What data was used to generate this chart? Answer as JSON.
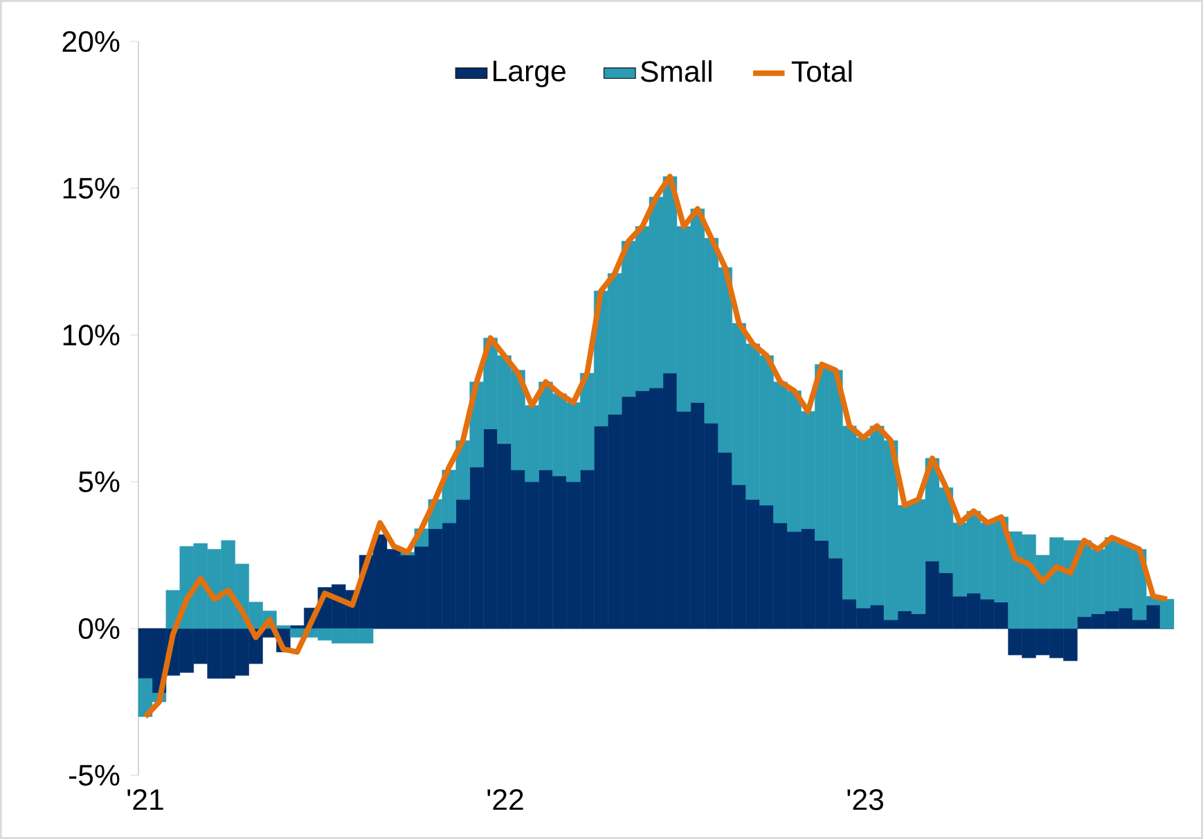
{
  "chart_data": {
    "type": "bar",
    "stacked": true,
    "legend": "top",
    "x": [
      "2021-01-01",
      "2021-01-15",
      "2021-01-29",
      "2021-02-12",
      "2021-02-26",
      "2021-03-12",
      "2021-03-26",
      "2021-04-09",
      "2021-04-23",
      "2021-05-07",
      "2021-05-21",
      "2021-06-04",
      "2021-06-18",
      "2021-07-02",
      "2021-07-16",
      "2021-07-30",
      "2021-08-13",
      "2021-08-27",
      "2021-09-10",
      "2021-09-24",
      "2021-10-08",
      "2021-10-22",
      "2021-11-05",
      "2021-11-19",
      "2021-12-03",
      "2021-12-17",
      "2021-12-31",
      "2022-01-14",
      "2022-01-28",
      "2022-02-11",
      "2022-02-25",
      "2022-03-11",
      "2022-03-25",
      "2022-04-08",
      "2022-04-22",
      "2022-05-06",
      "2022-05-20",
      "2022-06-03",
      "2022-06-17",
      "2022-07-01",
      "2022-07-15",
      "2022-07-29",
      "2022-08-12",
      "2022-08-26",
      "2022-09-09",
      "2022-09-23",
      "2022-10-07",
      "2022-10-21",
      "2022-11-04",
      "2022-11-18",
      "2022-12-02",
      "2022-12-16",
      "2022-12-30",
      "2023-01-13",
      "2023-01-27",
      "2023-02-10",
      "2023-02-24",
      "2023-03-10",
      "2023-03-24",
      "2023-04-07",
      "2023-04-21",
      "2023-05-05",
      "2023-05-19",
      "2023-06-02",
      "2023-06-16",
      "2023-06-30",
      "2023-07-14",
      "2023-07-28",
      "2023-08-11",
      "2023-08-25",
      "2023-09-08",
      "2023-09-22",
      "2023-10-06",
      "2023-10-20",
      "2023-11-03"
    ],
    "series": [
      {
        "name": "Large",
        "color": "#002f6c",
        "values": [
          -1.7,
          -2.2,
          -1.6,
          -1.5,
          -1.2,
          -1.7,
          -1.7,
          -1.6,
          -1.2,
          -0.3,
          -0.8,
          0.1,
          0.7,
          1.4,
          1.5,
          1.3,
          2.5,
          3.2,
          2.7,
          2.5,
          2.8,
          3.4,
          3.6,
          4.4,
          5.5,
          6.8,
          6.3,
          5.4,
          5.0,
          5.4,
          5.2,
          5.0,
          5.4,
          6.9,
          7.3,
          7.9,
          8.1,
          8.2,
          8.7,
          7.4,
          7.7,
          7.0,
          6.0,
          4.9,
          4.4,
          4.2,
          3.6,
          3.3,
          3.4,
          3.0,
          2.4,
          1.0,
          0.7,
          0.8,
          0.3,
          0.6,
          0.5,
          2.3,
          1.9,
          1.1,
          1.2,
          1.0,
          0.9,
          -0.9,
          -1.0,
          -0.9,
          -1.0,
          -1.1,
          0.4,
          0.5,
          0.6,
          0.7,
          0.3,
          0.8,
          0.0
        ]
      },
      {
        "name": "Small",
        "color": "#2a9bb3",
        "values": [
          -1.3,
          -0.3,
          1.3,
          2.8,
          2.9,
          2.7,
          3.0,
          2.2,
          0.9,
          0.6,
          0.1,
          -0.3,
          -0.3,
          -0.4,
          -0.5,
          -0.5,
          -0.5,
          null,
          null,
          0.1,
          0.6,
          1.0,
          1.8,
          2.0,
          2.9,
          3.1,
          3.0,
          3.4,
          2.6,
          3.0,
          2.8,
          2.7,
          3.3,
          4.6,
          4.8,
          5.3,
          5.6,
          6.5,
          6.7,
          6.3,
          6.6,
          6.3,
          6.3,
          5.5,
          5.3,
          5.1,
          4.8,
          4.8,
          4.0,
          6.0,
          6.4,
          5.9,
          5.8,
          6.1,
          6.1,
          3.6,
          3.9,
          3.5,
          2.9,
          2.5,
          2.8,
          2.6,
          2.9,
          3.3,
          3.2,
          2.5,
          3.1,
          3.0,
          2.6,
          2.2,
          2.5,
          2.2,
          2.4,
          0.3,
          1.0
        ]
      },
      {
        "name": "Total",
        "type": "line",
        "color": "#e4700d",
        "values": [
          -3.0,
          -2.5,
          -0.2,
          1.0,
          1.7,
          1.0,
          1.3,
          0.6,
          -0.3,
          0.3,
          -0.7,
          -0.8,
          0.2,
          1.2,
          1.0,
          0.8,
          2.2,
          3.6,
          2.8,
          2.6,
          3.4,
          4.4,
          5.5,
          6.4,
          8.4,
          9.9,
          9.3,
          8.7,
          7.6,
          8.4,
          8.0,
          7.7,
          8.7,
          11.5,
          12.1,
          13.2,
          13.7,
          14.7,
          15.4,
          13.7,
          14.3,
          13.3,
          12.3,
          10.4,
          9.7,
          9.3,
          8.4,
          8.1,
          7.4,
          9.0,
          8.8,
          6.9,
          6.5,
          6.9,
          6.4,
          4.2,
          4.4,
          5.8,
          4.8,
          3.6,
          4.0,
          3.6,
          3.8,
          2.4,
          2.2,
          1.6,
          2.1,
          1.9,
          3.0,
          2.7,
          3.1,
          2.9,
          2.7,
          1.1,
          1.0
        ]
      }
    ],
    "xlim": [
      "2020-12-25",
      "2023-11-10"
    ],
    "xticks": [
      {
        "value": "2021-01-01",
        "label": "'21"
      },
      {
        "value": "2022-01-01",
        "label": "'22"
      },
      {
        "value": "2023-01-01",
        "label": "'23"
      }
    ],
    "ylim": [
      -5,
      20
    ],
    "yticks": [
      {
        "value": -5,
        "label": "-5%"
      },
      {
        "value": 0,
        "label": "0%"
      },
      {
        "value": 5,
        "label": "5%"
      },
      {
        "value": 10,
        "label": "10%"
      },
      {
        "value": 15,
        "label": "15%"
      },
      {
        "value": 20,
        "label": "20%"
      }
    ]
  }
}
